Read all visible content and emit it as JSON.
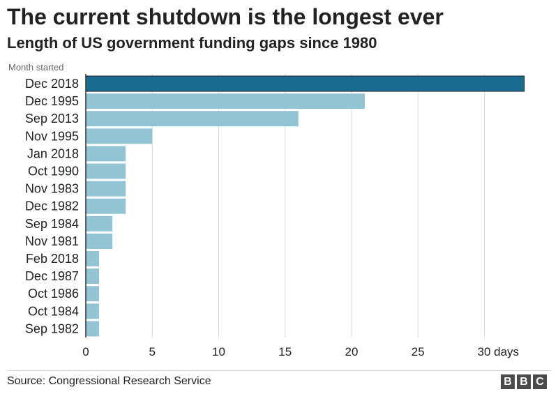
{
  "header": {
    "title": "The current shutdown is the longest ever",
    "subtitle": "Length of US government funding gaps since 1980"
  },
  "chart_data": {
    "type": "bar",
    "orientation": "horizontal",
    "title": "The current shutdown is the longest ever",
    "subtitle": "Length of US government funding gaps since 1980",
    "ylabel": "Month started",
    "xlabel": "",
    "x_unit": "days",
    "categories": [
      "Dec 2018",
      "Dec 1995",
      "Sep 2013",
      "Nov 1995",
      "Jan 2018",
      "Oct 1990",
      "Nov 1983",
      "Dec 1982",
      "Sep 1984",
      "Nov 1981",
      "Feb 2018",
      "Dec 1987",
      "Oct 1986",
      "Oct 1984",
      "Sep 1982"
    ],
    "values": [
      33,
      21,
      16,
      5,
      3,
      3,
      3,
      3,
      2,
      2,
      1,
      1,
      1,
      1,
      1
    ],
    "highlight_index": 0,
    "xlim": [
      0,
      33
    ],
    "xticks": [
      0,
      5,
      10,
      15,
      20,
      25,
      30
    ],
    "xtick_labels": [
      "0",
      "5",
      "10",
      "15",
      "20",
      "25",
      "30 days"
    ],
    "grid": "vertical",
    "legend": "none",
    "colors": {
      "highlight": "#1b6b8e",
      "bar": "#93c4d4",
      "grid": "#dcdcdc",
      "axis": "#333333"
    }
  },
  "footer": {
    "source": "Source: Congressional Research Service",
    "logo_letters": [
      "B",
      "B",
      "C"
    ]
  }
}
